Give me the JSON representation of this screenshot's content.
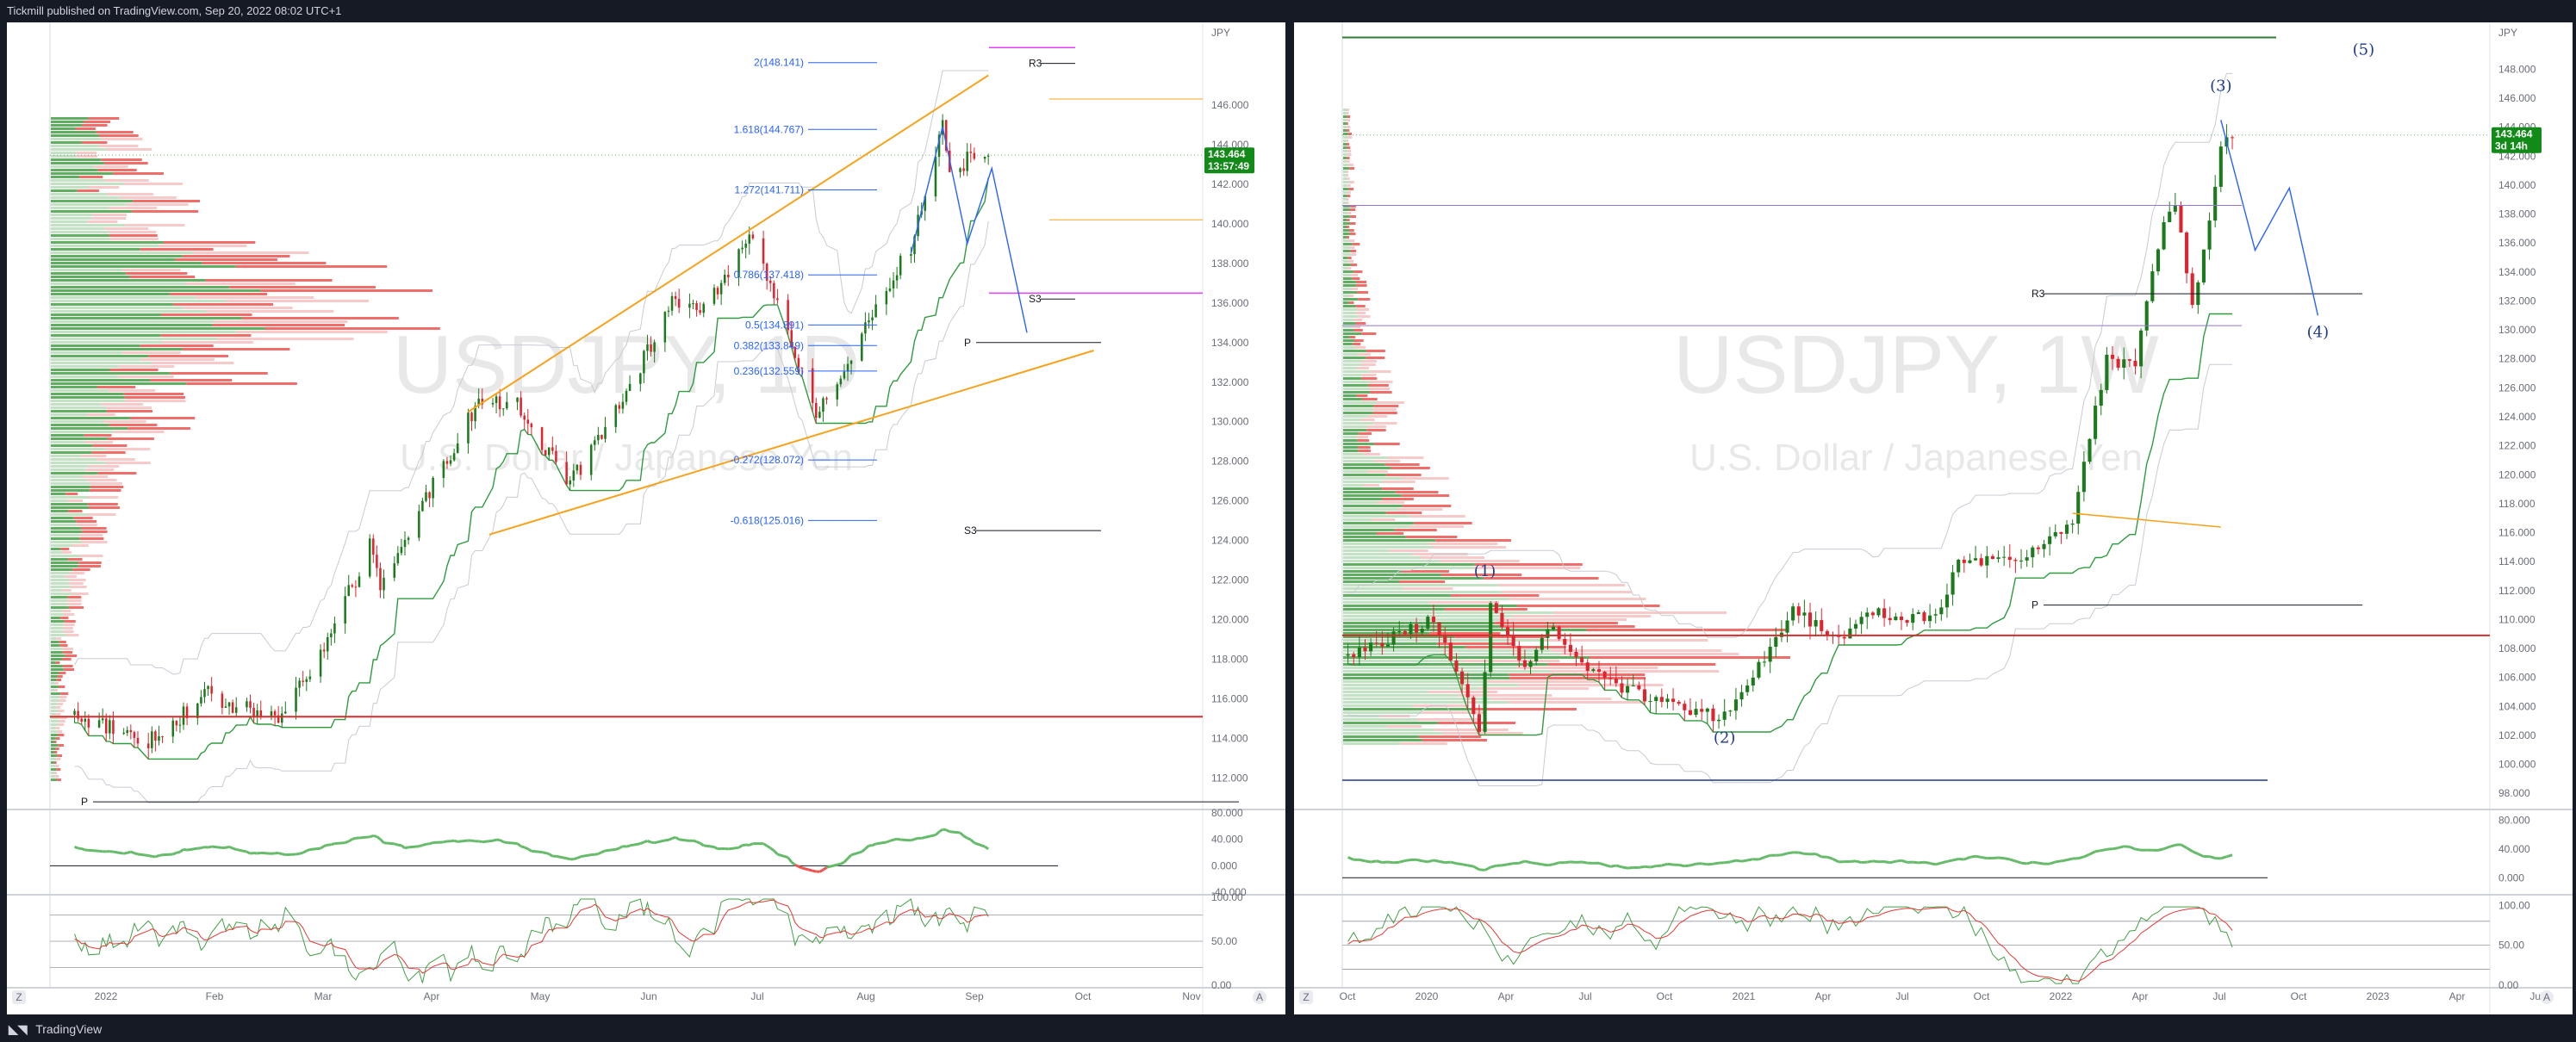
{
  "header": {
    "publisher_text": "Tickmill published on TradingView.com, Sep 20, 2022 08:02 UTC+1"
  },
  "footer": {
    "brand": "TradingView"
  },
  "colors": {
    "up": "#1b7a1b",
    "down": "#e0242f",
    "accent_blue": "#2962ff",
    "orange": "#f7a21b",
    "magenta": "#e040fb",
    "price_tag": "#118a18",
    "bg_dark": "#161a25"
  },
  "chart_data": [
    {
      "id": "left",
      "type": "candlestick",
      "symbol": "USDJPY, 1D",
      "description": "U.S. Dollar / Japanese Yen",
      "currency": "JPY",
      "last_price": "143.464",
      "countdown": "13:57:49",
      "ylim": [
        110.5,
        150
      ],
      "yticks": [
        "146.000",
        "144.000",
        "142.000",
        "140.000",
        "138.000",
        "136.000",
        "134.000",
        "132.000",
        "130.000",
        "128.000",
        "126.000",
        "124.000",
        "122.000",
        "120.000",
        "118.000",
        "116.000",
        "114.000",
        "112.000"
      ],
      "x_labels": [
        "2022",
        "Feb",
        "Mar",
        "Apr",
        "May",
        "Jun",
        "Jul",
        "Aug",
        "Sep",
        "Oct",
        "Nov"
      ],
      "key_prices": [
        {
          "date": "2022-01-03",
          "price": 115.2
        },
        {
          "date": "2022-01-24",
          "price": 113.9
        },
        {
          "date": "2022-02-10",
          "price": 116.2
        },
        {
          "date": "2022-03-01",
          "price": 114.9
        },
        {
          "date": "2022-03-15",
          "price": 118.5
        },
        {
          "date": "2022-03-28",
          "price": 123.7
        },
        {
          "date": "2022-03-31",
          "price": 121.5
        },
        {
          "date": "2022-04-20",
          "price": 128.5
        },
        {
          "date": "2022-04-28",
          "price": 131.0
        },
        {
          "date": "2022-05-09",
          "price": 130.8
        },
        {
          "date": "2022-05-24",
          "price": 126.8
        },
        {
          "date": "2022-06-15",
          "price": 133.5
        },
        {
          "date": "2022-06-22",
          "price": 136.4
        },
        {
          "date": "2022-06-30",
          "price": 135.3
        },
        {
          "date": "2022-07-14",
          "price": 139.2
        },
        {
          "date": "2022-07-22",
          "price": 136.1
        },
        {
          "date": "2022-08-02",
          "price": 130.4
        },
        {
          "date": "2022-08-10",
          "price": 132.8
        },
        {
          "date": "2022-08-29",
          "price": 138.9
        },
        {
          "date": "2022-09-07",
          "price": 144.9
        },
        {
          "date": "2022-09-09",
          "price": 142.3
        },
        {
          "date": "2022-09-14",
          "price": 143.2
        },
        {
          "date": "2022-09-20",
          "price": 143.464
        }
      ],
      "fib_levels": [
        {
          "label": "2(148.141)",
          "price": 148.141
        },
        {
          "label": "1.618(144.767)",
          "price": 144.767
        },
        {
          "label": "1.272(141.711)",
          "price": 141.711
        },
        {
          "label": "0.786(137.418)",
          "price": 137.418
        },
        {
          "label": "0.5(134.891)",
          "price": 134.891
        },
        {
          "label": "0.382(133.849)",
          "price": 133.849
        },
        {
          "label": "0.236(132.559)",
          "price": 132.559
        },
        {
          "label": "-0.272(128.072)",
          "price": 128.072
        },
        {
          "label": "-0.618(125.016)",
          "price": 125.016
        }
      ],
      "pivot_labels": [
        {
          "label": "R3",
          "price": 148.1
        },
        {
          "label": "S3",
          "price": 136.2
        },
        {
          "label": "P",
          "price": 134.0
        },
        {
          "label": "S3",
          "price": 124.5
        },
        {
          "label": "P",
          "price": 110.8
        }
      ],
      "rsi": {
        "ylim": [
          -40,
          80
        ],
        "yticks": [
          "80.000",
          "40.000",
          "0.000",
          "-40.000"
        ]
      },
      "stoch": {
        "ylim": [
          0,
          100
        ],
        "yticks": [
          "100.00",
          "50.00",
          "0.00"
        ]
      }
    },
    {
      "id": "right",
      "type": "candlestick",
      "symbol": "USDJPY, 1W",
      "description": "U.S. Dollar / Japanese Yen",
      "currency": "JPY",
      "last_price": "143.464",
      "countdown": "3d 14h",
      "ylim": [
        97,
        151
      ],
      "yticks": [
        "148.000",
        "146.000",
        "144.000",
        "142.000",
        "140.000",
        "138.000",
        "136.000",
        "134.000",
        "132.000",
        "130.000",
        "128.000",
        "126.000",
        "124.000",
        "122.000",
        "120.000",
        "118.000",
        "116.000",
        "114.000",
        "112.000",
        "110.000",
        "108.000",
        "106.000",
        "104.000",
        "102.000",
        "100.000",
        "98.000"
      ],
      "x_labels": [
        "Oct",
        "2020",
        "Apr",
        "Jul",
        "Oct",
        "2021",
        "Apr",
        "Jul",
        "Oct",
        "2022",
        "Apr",
        "Jul",
        "Oct",
        "2023",
        "Apr",
        "Jul"
      ],
      "key_prices": [
        {
          "date": "2019-09-30",
          "price": 107.5
        },
        {
          "date": "2020-01-13",
          "price": 110.0
        },
        {
          "date": "2020-03-09",
          "price": 102.5
        },
        {
          "date": "2020-03-23",
          "price": 111.0
        },
        {
          "date": "2020-05-04",
          "price": 106.5
        },
        {
          "date": "2020-06-08",
          "price": 109.5
        },
        {
          "date": "2020-08-03",
          "price": 106.0
        },
        {
          "date": "2020-11-02",
          "price": 104.0
        },
        {
          "date": "2021-01-04",
          "price": 103.2
        },
        {
          "date": "2021-03-29",
          "price": 110.5
        },
        {
          "date": "2021-05-24",
          "price": 108.8
        },
        {
          "date": "2021-07-05",
          "price": 110.5
        },
        {
          "date": "2021-09-20",
          "price": 110.0
        },
        {
          "date": "2021-10-18",
          "price": 114.0
        },
        {
          "date": "2021-12-20",
          "price": 114.0
        },
        {
          "date": "2022-01-31",
          "price": 115.0
        },
        {
          "date": "2022-03-07",
          "price": 117.0
        },
        {
          "date": "2022-04-18",
          "price": 128.0
        },
        {
          "date": "2022-05-23",
          "price": 127.5
        },
        {
          "date": "2022-06-20",
          "price": 136.0
        },
        {
          "date": "2022-07-11",
          "price": 139.0
        },
        {
          "date": "2022-08-01",
          "price": 131.5
        },
        {
          "date": "2022-08-29",
          "price": 140.0
        },
        {
          "date": "2022-09-05",
          "price": 143.0
        },
        {
          "date": "2022-09-19",
          "price": 143.464
        }
      ],
      "wave_labels": [
        {
          "label": "(1)",
          "date": "2020-03-16",
          "price": 113.0
        },
        {
          "label": "(2)",
          "date": "2021-01-04",
          "price": 101.5
        },
        {
          "label": "(3)",
          "date": "2022-09-05",
          "price": 146.5
        },
        {
          "label": "(4)",
          "date": "2023-01-02",
          "price": 129.5
        },
        {
          "label": "(5)",
          "date": "2023-02-27",
          "price": 149.0
        }
      ],
      "pivot_labels": [
        {
          "label": "R3",
          "price": 132.5
        },
        {
          "label": "P",
          "price": 111.0
        }
      ],
      "rsi": {
        "ylim": [
          -20,
          90
        ],
        "yticks": [
          "80.000",
          "40.000",
          "0.000"
        ]
      },
      "stoch": {
        "ylim": [
          0,
          110
        ],
        "yticks": [
          "100.00",
          "50.00",
          "0.00"
        ]
      }
    }
  ]
}
